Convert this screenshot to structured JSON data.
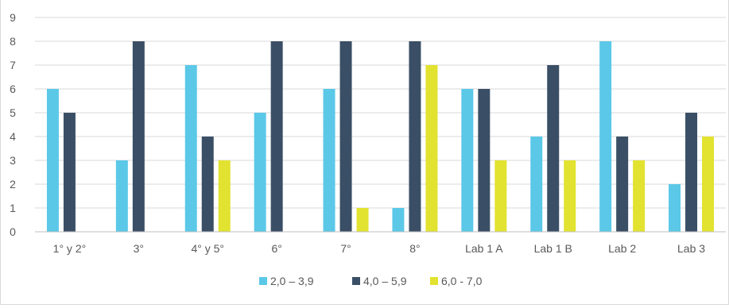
{
  "chart_data": {
    "type": "bar",
    "title": "",
    "xlabel": "",
    "ylabel": "",
    "categories": [
      "1° y 2°",
      "3°",
      "4° y 5°",
      "6°",
      "7°",
      "8°",
      "Lab 1 A",
      "Lab 1 B",
      "Lab 2",
      "Lab 3"
    ],
    "series": [
      {
        "name": "2,0 – 3,9",
        "color": "#5bc8e8",
        "values": [
          6,
          3,
          7,
          5,
          6,
          1,
          6,
          4,
          8,
          2
        ]
      },
      {
        "name": "4,0 – 5,9",
        "color": "#3a4f66",
        "values": [
          5,
          8,
          4,
          8,
          8,
          8,
          6,
          7,
          4,
          5
        ]
      },
      {
        "name": "6,0 - 7,0",
        "color": "#e2e230",
        "values": [
          0,
          0,
          3,
          0,
          1,
          7,
          3,
          3,
          3,
          4
        ]
      }
    ],
    "ylim": [
      0,
      9
    ],
    "yticks": [
      0,
      1,
      2,
      3,
      4,
      5,
      6,
      7,
      8,
      9
    ],
    "grid": true,
    "legend_position": "bottom"
  }
}
